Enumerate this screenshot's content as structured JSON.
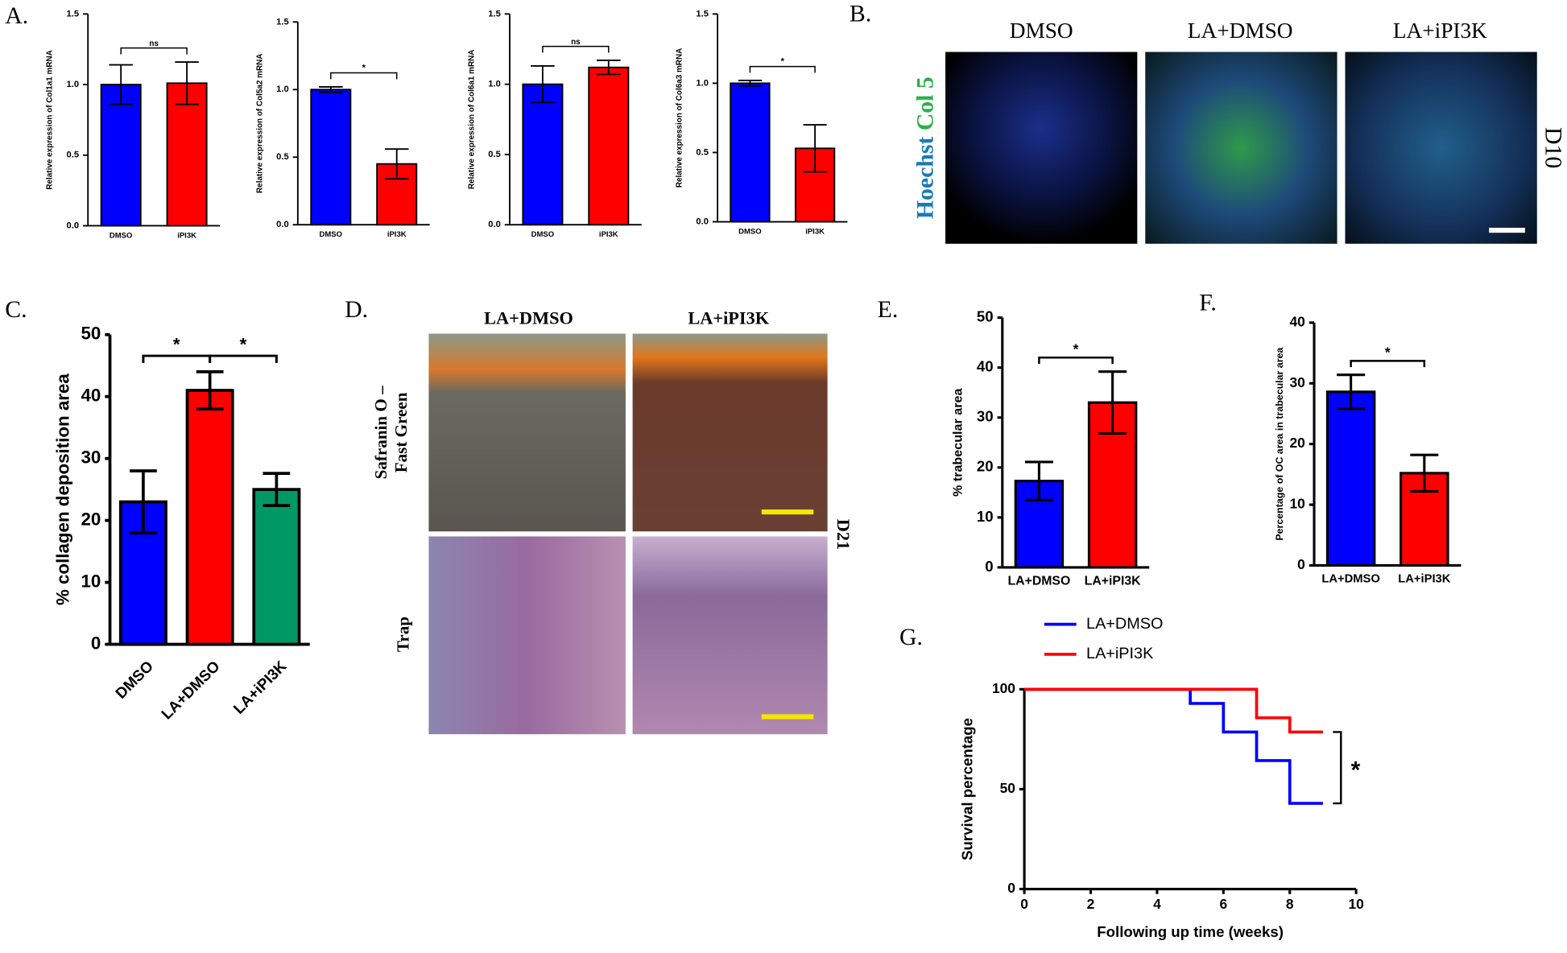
{
  "chart_data": [
    {
      "type": "bar",
      "panel": "A.",
      "ylabel": "Relative expression of Col1a1 mRNA",
      "categories": [
        "DMSO",
        "iPI3K"
      ],
      "colors": [
        "#0000ff",
        "#ff0000"
      ],
      "values": [
        1.0,
        1.01
      ],
      "errors": [
        0.14,
        0.15
      ],
      "ylim": [
        0,
        1.5
      ],
      "yticks": [
        {
          "value": 0,
          "label": "0.0"
        },
        0.5,
        {
          "value": 1,
          "label": "1.0"
        },
        1.5
      ],
      "annotations": [
        "ns"
      ]
    },
    {
      "type": "bar",
      "ylabel": "Relative expression of Col5a2 mRNA",
      "categories": [
        "DMSO",
        "iPI3K"
      ],
      "colors": [
        "#0000ff",
        "#ff0000"
      ],
      "values": [
        1.0,
        0.45
      ],
      "errors": [
        0.02,
        0.11
      ],
      "ylim": [
        0,
        1.5
      ],
      "yticks": [
        {
          "value": 0,
          "label": "0.0"
        },
        0.5,
        {
          "value": 1,
          "label": "1.0"
        },
        1.5
      ],
      "annotations": [
        "*"
      ]
    },
    {
      "type": "bar",
      "ylabel": "Relative expression of Col6a1 mRNA",
      "categories": [
        "DMSO",
        "iPI3K"
      ],
      "colors": [
        "#0000ff",
        "#ff0000"
      ],
      "values": [
        1.0,
        1.12
      ],
      "errors": [
        0.13,
        0.05
      ],
      "ylim": [
        0,
        1.5
      ],
      "yticks": [
        {
          "value": 0,
          "label": "0.0"
        },
        0.5,
        {
          "value": 1,
          "label": "1.0"
        },
        1.5
      ],
      "annotations": [
        "ns"
      ]
    },
    {
      "type": "bar",
      "ylabel": "Relative expression of Col6a3 mRNA",
      "categories": [
        "DMSO",
        "iPI3K"
      ],
      "colors": [
        "#0000ff",
        "#ff0000"
      ],
      "values": [
        1.0,
        0.53
      ],
      "errors": [
        0.02,
        0.17
      ],
      "ylim": [
        0,
        1.5
      ],
      "yticks": [
        {
          "value": 0,
          "label": "0.0"
        },
        0.5,
        {
          "value": 1,
          "label": "1.0"
        },
        1.5
      ],
      "annotations": [
        "*"
      ]
    },
    {
      "type": "bar",
      "panel": "C.",
      "ylabel": "% collagen deposition area",
      "categories": [
        "DMSO",
        "LA+DMSO",
        "LA+iPI3K"
      ],
      "colors": [
        "#0000ff",
        "#ff0000",
        "#009966"
      ],
      "values": [
        23,
        41,
        25
      ],
      "errors": [
        5,
        3,
        2.6
      ],
      "ylim": [
        0,
        50
      ],
      "yticks": [
        0,
        10,
        20,
        30,
        40,
        50
      ],
      "annotations": [
        "*",
        "*"
      ]
    },
    {
      "type": "bar",
      "panel": "E.",
      "ylabel": "% trabecular area",
      "categories": [
        "LA+DMSO",
        "LA+iPI3K"
      ],
      "colors": [
        "#0000ff",
        "#ff0000"
      ],
      "values": [
        17.3,
        33
      ],
      "errors": [
        3.8,
        6.2
      ],
      "ylim": [
        0,
        50
      ],
      "yticks": [
        0,
        10,
        20,
        30,
        40,
        50
      ],
      "annotations": [
        "*"
      ]
    },
    {
      "type": "bar",
      "panel": "F.",
      "ylabel": "Percentage of OC area in trabecular area",
      "categories": [
        "LA+DMSO",
        "LA+iPI3K"
      ],
      "colors": [
        "#0000ff",
        "#ff0000"
      ],
      "values": [
        28.6,
        15.2
      ],
      "errors": [
        2.8,
        3.0
      ],
      "ylim": [
        0,
        40
      ],
      "yticks": [
        0,
        10,
        20,
        30,
        40
      ],
      "annotations": [
        "*"
      ]
    },
    {
      "type": "line",
      "step": true,
      "panel": "G.",
      "xlabel": "Following up time (weeks)",
      "ylabel": "Survival percentage",
      "xlim": [
        0,
        10
      ],
      "xticks": [
        0,
        2,
        4,
        6,
        8,
        10
      ],
      "ylim": [
        0,
        100
      ],
      "yticks": [
        0,
        50,
        100
      ],
      "series": [
        {
          "name": "LA+DMSO",
          "color": "#0000ff",
          "x": [
            0,
            5,
            6,
            7,
            8,
            9
          ],
          "values": [
            100,
            92.9,
            78.6,
            64.3,
            42.9,
            42.9
          ]
        },
        {
          "name": "LA+iPI3K",
          "color": "#ff0000",
          "x": [
            0,
            7,
            8,
            9
          ],
          "values": [
            100,
            85.7,
            78.6,
            78.6
          ]
        }
      ],
      "annotations": [
        "*"
      ]
    }
  ],
  "panel_b": {
    "letter": "B.",
    "columns": [
      "DMSO",
      "LA+DMSO",
      "LA+iPI3K"
    ],
    "stain": [
      "Hoechst",
      "Col 5"
    ],
    "timepoint": "D10"
  },
  "panel_d": {
    "letter": "D.",
    "columns": [
      "LA+DMSO",
      "LA+iPI3K"
    ],
    "rows": [
      [
        "Safranin O –",
        "Fast Green"
      ],
      [
        "Trap"
      ]
    ],
    "timepoint": "D21"
  }
}
